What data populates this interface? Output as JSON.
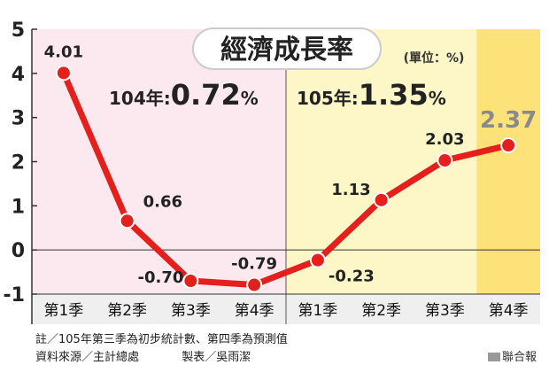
{
  "chart_data": {
    "type": "line",
    "title": "經濟成長率",
    "unit": "(單位：%)",
    "categories": [
      "第1季",
      "第2季",
      "第3季",
      "第4季",
      "第1季",
      "第2季",
      "第3季",
      "第4季"
    ],
    "values": [
      4.01,
      0.66,
      -0.7,
      -0.79,
      -0.23,
      1.13,
      2.03,
      2.37
    ],
    "value_labels": [
      "4.01",
      "0.66",
      "-0.70",
      "-0.79",
      "-0.23",
      "1.13",
      "2.03",
      "2.37"
    ],
    "ylim": [
      -1,
      5
    ],
    "yticks": [
      "-1",
      "0",
      "1",
      "2",
      "3",
      "4",
      "5"
    ],
    "periods": [
      {
        "label": "104年:",
        "value": "0.72",
        "suffix": "%"
      },
      {
        "label": "105年:",
        "value": "1.35",
        "suffix": "%"
      }
    ],
    "colors": {
      "line": "#e3201b",
      "band_104": "#fce8ef",
      "band_105": "#fdf6c6",
      "band_forecast": "#fde27a",
      "highlight_label": "#8a8a8a"
    }
  },
  "footer": {
    "note": "註／105年第三季為初步統計數、第四季為預測值",
    "source": "資料來源／主計總處",
    "maker": "製表／吳雨潔",
    "credit": "聯合報"
  }
}
